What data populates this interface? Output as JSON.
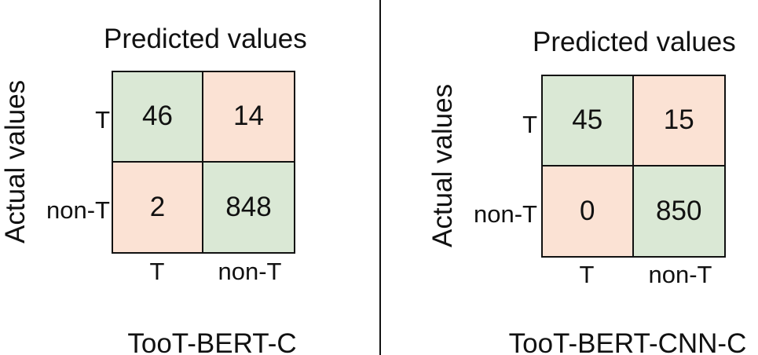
{
  "colors": {
    "correct": "#dae8d5",
    "incorrect": "#fbe2d4",
    "border": "#111111"
  },
  "panels": [
    {
      "top_label": "Predicted values",
      "side_label": "Actual values",
      "row_labels": [
        "T",
        "non-T"
      ],
      "col_labels": [
        "T",
        "non-T"
      ],
      "cells": [
        "46",
        "14",
        "2",
        "848"
      ],
      "caption": "TooT-BERT-C"
    },
    {
      "top_label": "Predicted values",
      "side_label": "Actual values",
      "row_labels": [
        "T",
        "non-T"
      ],
      "col_labels": [
        "T",
        "non-T"
      ],
      "cells": [
        "45",
        "15",
        "0",
        "850"
      ],
      "caption": "TooT-BERT-CNN-C"
    }
  ]
}
